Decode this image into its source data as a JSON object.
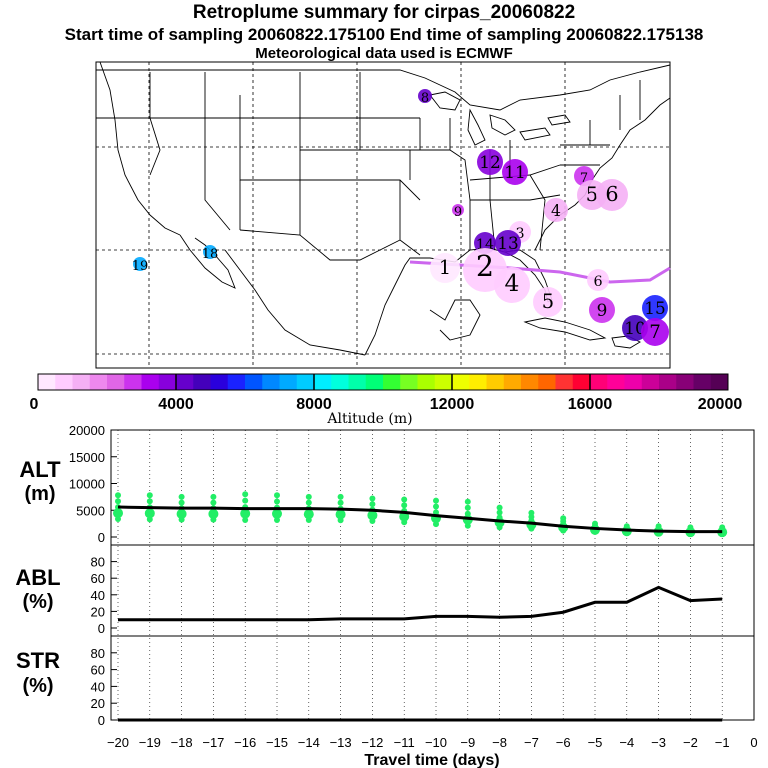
{
  "header": {
    "title": "Retroplume summary for cirpas_20060822",
    "sampling_line": "Start time of sampling 20060822.175100     End time of sampling 20060822.175138",
    "met_line": "Meteorological data used is ECMWF"
  },
  "colorbar": {
    "label": "Altitude (m)",
    "tick_labels": [
      "0",
      "4000",
      "8000",
      "12000",
      "16000",
      "20000"
    ],
    "min": 0,
    "max": 20000,
    "colors": [
      "#ffe8ff",
      "#ffccff",
      "#f5b0f5",
      "#ee88ee",
      "#e066e6",
      "#cc33ee",
      "#aa00ee",
      "#8800dd",
      "#6600cc",
      "#4400bb",
      "#2a00dd",
      "#1a22ff",
      "#0055ff",
      "#0088ff",
      "#00aaff",
      "#00ccff",
      "#00eeff",
      "#00ffdd",
      "#00ffaa",
      "#00ff77",
      "#33ff33",
      "#77ff22",
      "#aaff00",
      "#ccff00",
      "#eeff00",
      "#ffee00",
      "#ffcc00",
      "#ffaa00",
      "#ff8800",
      "#ff6600",
      "#ff3333",
      "#ff0033",
      "#ff0077",
      "#ff0099",
      "#ee00aa",
      "#cc0099",
      "#aa0088",
      "#880077",
      "#660066",
      "#550055"
    ]
  },
  "map_markers": [
    {
      "label": "19",
      "altitude": 7000
    },
    {
      "label": "18",
      "altitude": 7000
    },
    {
      "label": "8",
      "altitude": 4300
    },
    {
      "label": "12",
      "altitude": 3500
    },
    {
      "label": "11",
      "altitude": 3200
    },
    {
      "label": "9",
      "altitude": 2600
    },
    {
      "label": "7",
      "altitude": 2600
    },
    {
      "label": "4",
      "altitude": 1200
    },
    {
      "label": "5",
      "altitude": 1200
    },
    {
      "label": "6",
      "altitude": 1100
    },
    {
      "label": "3",
      "altitude": 800
    },
    {
      "label": "14",
      "altitude": 4300
    },
    {
      "label": "13",
      "altitude": 4200
    },
    {
      "label": "1",
      "altitude": 300
    },
    {
      "label": "2",
      "altitude": 500
    },
    {
      "label": "4",
      "altitude": 600
    },
    {
      "label": "5",
      "altitude": 600
    },
    {
      "label": "6",
      "altitude": 900
    },
    {
      "label": "9",
      "altitude": 2800
    },
    {
      "label": "15",
      "altitude": 5500
    },
    {
      "label": "10",
      "altitude": 4800
    },
    {
      "label": "7",
      "altitude": 3000
    }
  ],
  "chart_data": [
    {
      "type": "line",
      "panel": "ALT",
      "ylabel": "ALT\n(m)",
      "ylim": [
        0,
        20000
      ],
      "yticks": [
        0,
        5000,
        10000,
        15000,
        20000
      ],
      "x": [
        -20,
        -19,
        -18,
        -17,
        -16,
        -15,
        -14,
        -13,
        -12,
        -11,
        -10,
        -9,
        -8,
        -7,
        -6,
        -5,
        -4,
        -3,
        -2,
        -1
      ],
      "series": [
        {
          "name": "mean altitude",
          "values": [
            5600,
            5500,
            5400,
            5400,
            5300,
            5300,
            5300,
            5200,
            5000,
            4600,
            4000,
            3500,
            3000,
            2600,
            2000,
            1600,
            1300,
            1100,
            1000,
            1000
          ]
        },
        {
          "name": "cluster altitude spread (max)",
          "values": [
            7800,
            7800,
            7500,
            7500,
            8000,
            7800,
            7500,
            7500,
            7200,
            7000,
            6800,
            6600,
            5500,
            4500,
            3500,
            2500,
            2000,
            2000,
            1800,
            1800
          ]
        }
      ]
    },
    {
      "type": "line",
      "panel": "ABL",
      "ylabel": "ABL\n(%)",
      "ylim": [
        0,
        100
      ],
      "yticks": [
        0,
        20,
        40,
        60,
        80
      ],
      "x": [
        -20,
        -19,
        -18,
        -17,
        -16,
        -15,
        -14,
        -13,
        -12,
        -11,
        -10,
        -9,
        -8,
        -7,
        -6,
        -5,
        -4,
        -3,
        -2,
        -1
      ],
      "values": [
        10,
        10,
        10,
        10,
        10,
        10,
        10,
        11,
        11,
        11,
        14,
        14,
        13,
        14,
        19,
        31,
        31,
        49,
        33,
        35
      ]
    },
    {
      "type": "line",
      "panel": "STR",
      "ylabel": "STR\n(%)",
      "ylim": [
        0,
        100
      ],
      "yticks": [
        0,
        20,
        40,
        60,
        80
      ],
      "x": [
        -20,
        -19,
        -18,
        -17,
        -16,
        -15,
        -14,
        -13,
        -12,
        -11,
        -10,
        -9,
        -8,
        -7,
        -6,
        -5,
        -4,
        -3,
        -2,
        -1
      ],
      "values": [
        0,
        0,
        0,
        0,
        0,
        0,
        0,
        0,
        0,
        0,
        0,
        0,
        0,
        0,
        0,
        0,
        0,
        0,
        0,
        0
      ]
    }
  ],
  "xaxis": {
    "label": "Travel time (days)",
    "tick_labels": [
      "−20",
      "−19",
      "−18",
      "−17",
      "−16",
      "−15",
      "−14",
      "−13",
      "−12",
      "−11",
      "−10",
      "−9",
      "−8",
      "−7",
      "−6",
      "−5",
      "−4",
      "−3",
      "−2",
      "−1",
      "0"
    ]
  }
}
